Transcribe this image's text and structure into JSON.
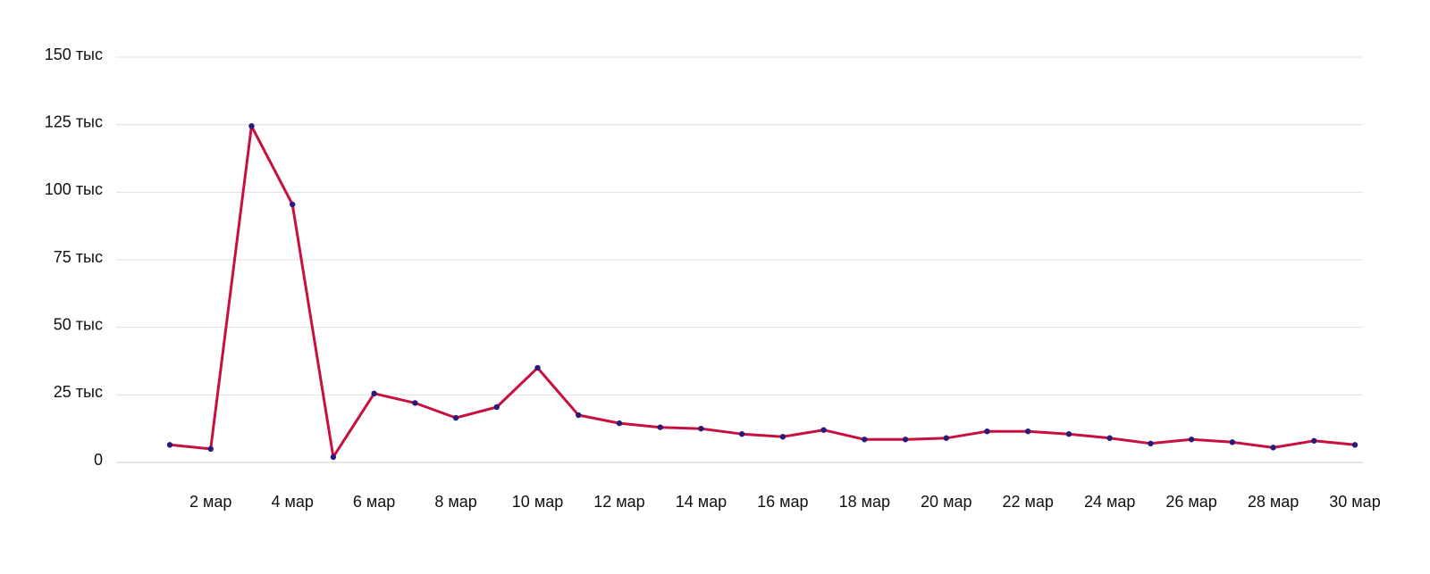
{
  "colors": {
    "line": "#c8103f",
    "point": "#2b1a7a",
    "grid": "#e0e0e0"
  },
  "chart_data": {
    "type": "line",
    "title": "",
    "xlabel": "",
    "ylabel": "",
    "ylim": [
      0,
      150000
    ],
    "grid": true,
    "legend": "none",
    "y_ticks": [
      {
        "value": 0,
        "label": "0"
      },
      {
        "value": 25000,
        "label": "25 тыс"
      },
      {
        "value": 50000,
        "label": "50 тыс"
      },
      {
        "value": 75000,
        "label": "75 тыс"
      },
      {
        "value": 100000,
        "label": "100 тыс"
      },
      {
        "value": 125000,
        "label": "125 тыс"
      },
      {
        "value": 150000,
        "label": "150 тыс"
      }
    ],
    "x": [
      "1 мар",
      "2 мар",
      "3 мар",
      "4 мар",
      "5 мар",
      "6 мар",
      "7 мар",
      "8 мар",
      "9 мар",
      "10 мар",
      "11 мар",
      "12 мар",
      "13 мар",
      "14 мар",
      "15 мар",
      "16 мар",
      "17 мар",
      "18 мар",
      "19 мар",
      "20 мар",
      "21 мар",
      "22 мар",
      "23 мар",
      "24 мар",
      "25 мар",
      "26 мар",
      "27 мар",
      "28 мар",
      "29 мар",
      "30 мар"
    ],
    "x_tick_labels": [
      "2 мар",
      "4 мар",
      "6 мар",
      "8 мар",
      "10 мар",
      "12 мар",
      "14 мар",
      "16 мар",
      "18 мар",
      "20 мар",
      "22 мар",
      "24 мар",
      "26 мар",
      "28 мар",
      "30 мар"
    ],
    "series": [
      {
        "values": [
          6500,
          5000,
          124500,
          95500,
          2000,
          25500,
          22000,
          16500,
          20500,
          35000,
          17500,
          14500,
          13000,
          12500,
          10500,
          9500,
          12000,
          8500,
          8500,
          9000,
          11500,
          11500,
          10500,
          9000,
          7000,
          8500,
          7500,
          5500,
          8000,
          6500
        ]
      }
    ]
  }
}
